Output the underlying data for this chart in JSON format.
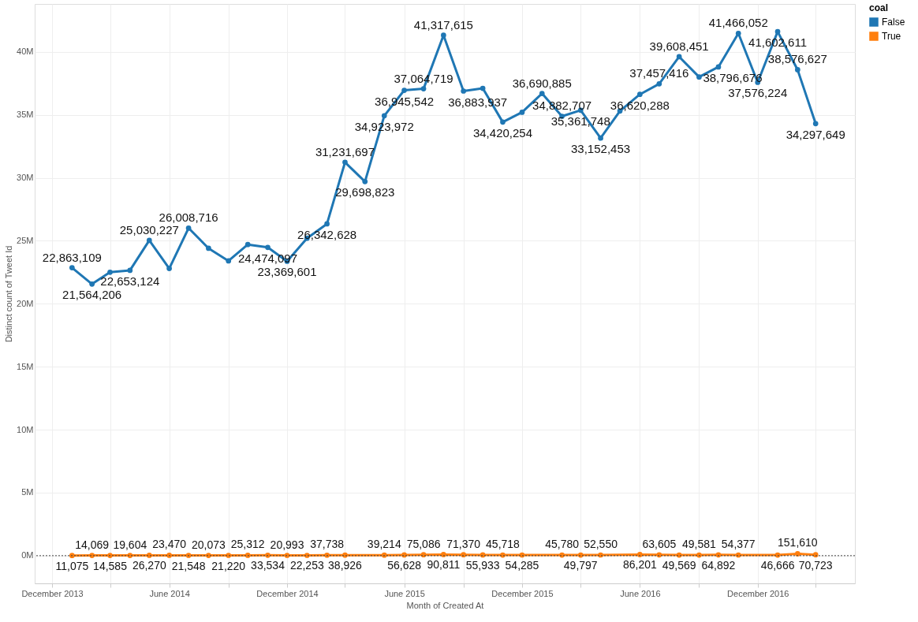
{
  "chart_data": {
    "type": "line",
    "xlabel": "Month of Created At",
    "ylabel": "Distinct count of Tweet Id",
    "legend_title": "coal",
    "legend": "top right",
    "grid": true,
    "marker": "circle",
    "line_style": "solid",
    "xlim": [
      "2013-11-04",
      "2017-05-01"
    ],
    "xticks": [
      {
        "value": "2013-12",
        "label": "December 2013"
      },
      {
        "value": "2014-03",
        "label": null
      },
      {
        "value": "2014-06",
        "label": "June 2014"
      },
      {
        "value": "2014-09",
        "label": null
      },
      {
        "value": "2014-12",
        "label": "December 2014"
      },
      {
        "value": "2015-03",
        "label": null
      },
      {
        "value": "2015-06",
        "label": "June 2015"
      },
      {
        "value": "2015-09",
        "label": null
      },
      {
        "value": "2015-12",
        "label": "December 2015"
      },
      {
        "value": "2016-03",
        "label": null
      },
      {
        "value": "2016-06",
        "label": "June 2016"
      },
      {
        "value": "2016-09",
        "label": null
      },
      {
        "value": "2016-12",
        "label": "December 2016"
      },
      {
        "value": "2017-03",
        "label": null
      }
    ],
    "ylim": [
      -2200000,
      43800000
    ],
    "yticks": [
      {
        "value": 0,
        "label": "0M"
      },
      {
        "value": 5000000,
        "label": "5M"
      },
      {
        "value": 10000000,
        "label": "10M"
      },
      {
        "value": 15000000,
        "label": "15M"
      },
      {
        "value": 20000000,
        "label": "20M"
      },
      {
        "value": 25000000,
        "label": "25M"
      },
      {
        "value": 30000000,
        "label": "30M"
      },
      {
        "value": 35000000,
        "label": "35M"
      },
      {
        "value": 40000000,
        "label": "40M"
      }
    ],
    "ref_lines": [
      {
        "axis": "y",
        "value": 0,
        "line_style": "dotted",
        "color": "#444444"
      }
    ],
    "series": [
      {
        "name": "False",
        "color": "#1f77b4",
        "x": [
          "2014-01",
          "2014-02",
          "2014-03",
          "2014-04",
          "2014-05",
          "2014-06",
          "2014-07",
          "2014-08",
          "2014-09",
          "2014-10",
          "2014-11",
          "2014-12",
          "2015-01",
          "2015-02",
          "2015-03",
          "2015-04",
          "2015-05",
          "2015-06",
          "2015-07",
          "2015-08",
          "2015-09",
          "2015-10",
          "2015-11",
          "2015-12",
          "2016-01",
          "2016-02",
          "2016-03",
          "2016-04",
          "2016-05",
          "2016-06",
          "2016-07",
          "2016-08",
          "2016-09",
          "2016-10",
          "2016-11",
          "2016-12",
          "2017-01",
          "2017-02",
          "2017-03"
        ],
        "values": [
          22863109,
          21564206,
          22500000,
          22653124,
          25030227,
          22800000,
          26008716,
          24400000,
          23400000,
          24700000,
          24474097,
          23369601,
          25200000,
          26342628,
          31231697,
          29698823,
          34923972,
          36945542,
          37064719,
          41317615,
          36883937,
          37100000,
          34420254,
          35200000,
          36690885,
          34882707,
          35361748,
          33152453,
          35300000,
          36620288,
          37457416,
          39608451,
          38000000,
          38796676,
          41466052,
          37576224,
          41602611,
          38576627,
          34297649
        ],
        "value_labels": [
          "22,863,109",
          "21,564,206",
          null,
          "22,653,124",
          "25,030,227",
          null,
          "26,008,716",
          null,
          null,
          null,
          "24,474,097",
          "23,369,601",
          null,
          "26,342,628",
          "31,231,697",
          "29,698,823",
          "34,923,972",
          "36,945,542",
          "37,064,719",
          "41,317,615",
          "36,883,937",
          null,
          "34,420,254",
          null,
          "36,690,885",
          "34,882,707",
          "35,361,748",
          "33,152,453",
          null,
          "36,620,288",
          "37,457,416",
          "39,608,451",
          null,
          "38,796,676",
          "41,466,052",
          "37,576,224",
          "41,602,611",
          "38,576,627",
          "34,297,649"
        ]
      },
      {
        "name": "True",
        "color": "#ff7f0e",
        "x": [
          "2014-01",
          "2014-02",
          "2014-03",
          "2014-04",
          "2014-05",
          "2014-06",
          "2014-07",
          "2014-08",
          "2014-09",
          "2014-10",
          "2014-11",
          "2014-12",
          "2015-01",
          "2015-02",
          "2015-03",
          "2015-05",
          "2015-06",
          "2015-07",
          "2015-08",
          "2015-09",
          "2015-10",
          "2015-11",
          "2015-12",
          "2016-02",
          "2016-03",
          "2016-04",
          "2016-06",
          "2016-07",
          "2016-08",
          "2016-09",
          "2016-10",
          "2016-11",
          "2017-01",
          "2017-02",
          "2017-03"
        ],
        "values": [
          11075,
          14069,
          14585,
          19604,
          26270,
          23470,
          21548,
          20073,
          21220,
          25312,
          33534,
          20993,
          22253,
          37738,
          38926,
          39214,
          56628,
          75086,
          90811,
          71370,
          55933,
          45718,
          54285,
          45780,
          49797,
          52550,
          86201,
          63605,
          49569,
          49581,
          64892,
          54377,
          46666,
          151610,
          70723
        ],
        "value_labels": [
          "11,075",
          "14,069",
          "14,585",
          "19,604",
          "26,270",
          "23,470",
          "21,548",
          "20,073",
          "21,220",
          "25,312",
          "33,534",
          "20,993",
          "22,253",
          "37,738",
          "38,926",
          "39,214",
          "56,628",
          "75,086",
          "90,811",
          "71,370",
          "55,933",
          "45,718",
          "54,285",
          "45,780",
          "49,797",
          "52,550",
          "86,201",
          "63,605",
          "49,569",
          "49,581",
          "64,892",
          "54,377",
          "46,666",
          "151,610",
          "70,723"
        ]
      }
    ]
  }
}
